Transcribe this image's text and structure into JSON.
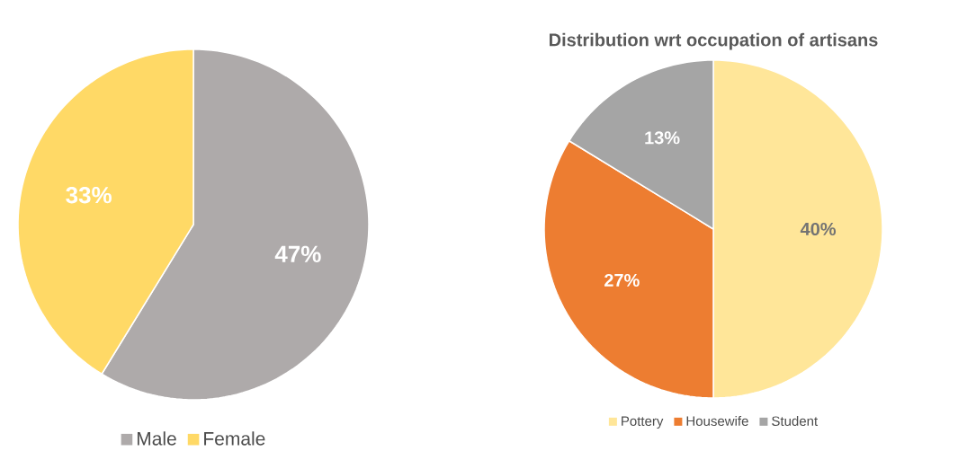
{
  "chart_data": [
    {
      "type": "pie",
      "categories": [
        "Male",
        "Female"
      ],
      "values": [
        47,
        33
      ],
      "value_labels": [
        "47%",
        "33%"
      ],
      "colors": [
        "#aeaaaa",
        "#ffd966"
      ],
      "legend": "bottom"
    },
    {
      "type": "pie",
      "title": "Distribution wrt occupation of artisans",
      "categories": [
        "Pottery",
        "Housewife",
        "Student"
      ],
      "values": [
        40,
        27,
        13
      ],
      "value_labels": [
        "40%",
        "27%",
        "13%"
      ],
      "colors": [
        "#ffe699",
        "#ed7d31",
        "#a5a5a5"
      ],
      "legend": "bottom"
    }
  ]
}
